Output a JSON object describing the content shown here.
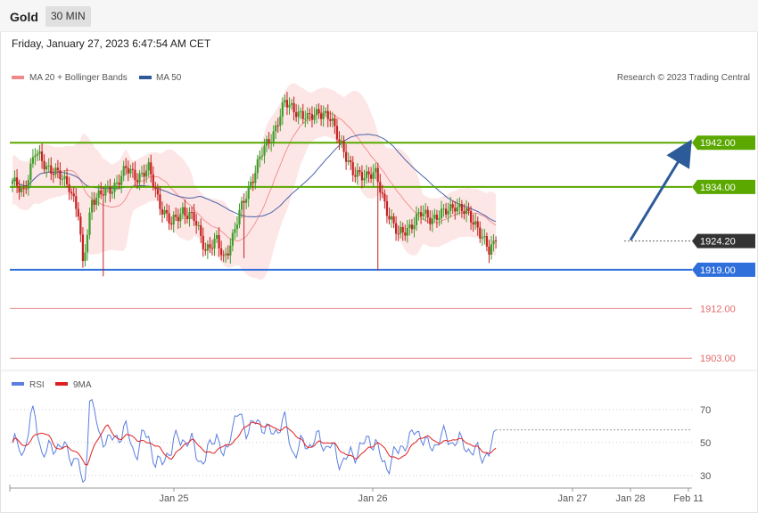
{
  "header": {
    "title": "Gold",
    "timeframe": "30 MIN"
  },
  "datetime": "Friday, January 27, 2023 6:47:54 AM CET",
  "legend": {
    "ma20_bb": "MA 20 + Bollinger Bands",
    "ma50": "MA 50",
    "credit": "Research © 2023 Trading Central"
  },
  "rsi_legend": {
    "rsi": "RSI",
    "ma9": "9MA"
  },
  "colors": {
    "green_level": "#5aa800",
    "blue_level": "#2e6fdc",
    "red_level": "#e56a6a",
    "current_price_badge": "#333333",
    "arrow": "#2d5b9a",
    "bb_fill": "#fde2e2",
    "ma20": "#f08080",
    "ma50": "#4a63a8",
    "candle_up": "#3f9d2a",
    "candle_down": "#c62121",
    "rsi_line": "#5b7fe0",
    "rsi_ma": "#e02020"
  },
  "chart_data": [
    {
      "type": "candlestick",
      "y_range": [
        1901.1,
        1951.7
      ],
      "x_labels": [
        "Jan 25",
        "Jan 26",
        "Jan 27",
        "Jan 28",
        "Feb 11"
      ],
      "grid": false,
      "levels": [
        {
          "name": "resistance-2",
          "price": 1942.0,
          "label": "1942.00",
          "color": "#5aa800",
          "style": "bold",
          "badge": true
        },
        {
          "name": "resistance-1",
          "price": 1934.0,
          "label": "1934.00",
          "color": "#5aa800",
          "style": "bold",
          "badge": true
        },
        {
          "name": "current-price",
          "price": 1924.2,
          "label": "1924.20",
          "color": "#333333",
          "style": "dotted",
          "badge": true
        },
        {
          "name": "pivot",
          "price": 1919.0,
          "label": "1919.00",
          "color": "#2e6fdc",
          "style": "bold",
          "badge": true
        },
        {
          "name": "support-1",
          "price": 1912.0,
          "label": "1912.00",
          "color": "#e56a6a",
          "style": "thin",
          "badge": false
        },
        {
          "name": "support-2",
          "price": 1903.0,
          "label": "1903.00",
          "color": "#e56a6a",
          "style": "thin",
          "badge": false
        }
      ],
      "projection": {
        "from_price": 1924.2,
        "to_price": 1941.5
      },
      "series": [
        {
          "name": "MA 20 + Bollinger Bands"
        },
        {
          "name": "MA 50"
        }
      ]
    },
    {
      "type": "line",
      "y_range": [
        24,
        78
      ],
      "y_ticks": [
        30,
        50,
        70
      ],
      "series": [
        {
          "name": "RSI"
        },
        {
          "name": "9MA"
        }
      ]
    }
  ]
}
